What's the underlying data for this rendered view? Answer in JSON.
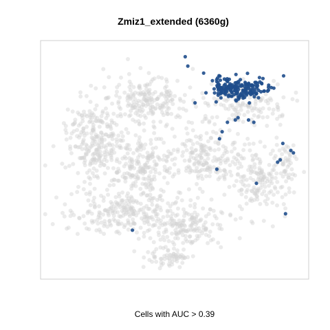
{
  "chart_data": {
    "type": "scatter",
    "title": "Zmiz1_extended (6360g)",
    "xlabel": "Cells with AUC > 0.39",
    "ylabel": "",
    "grid": false,
    "legend": "none",
    "colors": {
      "background_cells": "#d3d3d3",
      "highlight_cells": "#1f4e8c"
    },
    "series": [
      {
        "role": "all-cells",
        "blobs": [
          {
            "cx": 0.2,
            "cy": 0.42,
            "rx": 0.11,
            "ry": 0.18,
            "n": 260
          },
          {
            "cx": 0.4,
            "cy": 0.24,
            "rx": 0.15,
            "ry": 0.1,
            "n": 200
          },
          {
            "cx": 0.38,
            "cy": 0.52,
            "rx": 0.14,
            "ry": 0.12,
            "n": 200
          },
          {
            "cx": 0.3,
            "cy": 0.72,
            "rx": 0.2,
            "ry": 0.1,
            "n": 240
          },
          {
            "cx": 0.55,
            "cy": 0.78,
            "rx": 0.15,
            "ry": 0.09,
            "n": 170
          },
          {
            "cx": 0.62,
            "cy": 0.48,
            "rx": 0.12,
            "ry": 0.13,
            "n": 180
          },
          {
            "cx": 0.82,
            "cy": 0.58,
            "rx": 0.12,
            "ry": 0.14,
            "n": 170
          },
          {
            "cx": 0.75,
            "cy": 0.26,
            "rx": 0.15,
            "ry": 0.09,
            "n": 140
          },
          {
            "cx": 0.92,
            "cy": 0.5,
            "rx": 0.04,
            "ry": 0.09,
            "n": 40
          },
          {
            "cx": 0.48,
            "cy": 0.92,
            "rx": 0.08,
            "ry": 0.04,
            "n": 60
          }
        ]
      },
      {
        "role": "auc-positive-cells",
        "blobs": [
          {
            "cx": 0.76,
            "cy": 0.2,
            "rx": 0.12,
            "ry": 0.06,
            "n": 150
          },
          {
            "cx": 0.69,
            "cy": 0.19,
            "rx": 0.06,
            "ry": 0.04,
            "n": 40
          }
        ],
        "points": [
          [
            0.54,
            0.06
          ],
          [
            0.55,
            0.1
          ],
          [
            0.61,
            0.13
          ],
          [
            0.7,
            0.34
          ],
          [
            0.68,
            0.38
          ],
          [
            0.67,
            0.41
          ],
          [
            0.66,
            0.54
          ],
          [
            0.81,
            0.6
          ],
          [
            0.89,
            0.51
          ],
          [
            0.9,
            0.5
          ],
          [
            0.94,
            0.46
          ],
          [
            0.95,
            0.47
          ],
          [
            0.91,
            0.43
          ],
          [
            0.92,
            0.73
          ],
          [
            0.34,
            0.8
          ],
          [
            0.74,
            0.32
          ],
          [
            0.73,
            0.33
          ],
          [
            0.8,
            0.34
          ],
          [
            0.78,
            0.33
          ]
        ]
      }
    ]
  }
}
